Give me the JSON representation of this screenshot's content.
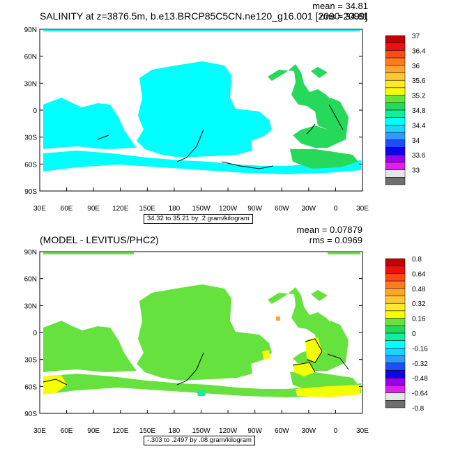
{
  "chart_data": [
    {
      "type": "heatmap",
      "title": "SALINITY at z=3876.5m, b.e13.BRCP85C5CN.ne120_g16.001 [2090-2099]",
      "stats": {
        "mean": "mean = 34.81",
        "rms": "rms = 34.81"
      },
      "info": "34.32 to 35.21 by .2 gram/kilogram",
      "x_ticks": [
        "30E",
        "60E",
        "90E",
        "120E",
        "150E",
        "180",
        "150W",
        "120W",
        "90W",
        "60W",
        "30W",
        "0",
        "30E"
      ],
      "y_ticks": [
        "90N",
        "60N",
        "30N",
        "0",
        "30S",
        "60S",
        "90S"
      ],
      "xlim": [
        30,
        390
      ],
      "ylim": [
        -90,
        90
      ],
      "colorbar_labels": [
        "37",
        "36.4",
        "36",
        "35.6",
        "35.2",
        "34.8",
        "34.4",
        "34",
        "33.6",
        "33"
      ],
      "colorbar_colors": [
        "#c40000",
        "#ee1010",
        "#ff4a14",
        "#ff7b1c",
        "#ffa430",
        "#ffc735",
        "#ffeb2b",
        "#f6ff00",
        "#66e23e",
        "#26d95a",
        "#12ee9f",
        "#00ffff",
        "#1ad3ff",
        "#2f9aff",
        "#1d4dff",
        "#1000ee",
        "#9900ee",
        "#dc20ee",
        "#e6e6e6",
        "#6e6e6e"
      ]
    },
    {
      "type": "heatmap",
      "title": "(MODEL - LEVITUS/PHC2)",
      "stats": {
        "mean": "mean = 0.07879",
        "rms": "rms = 0.0969"
      },
      "info": "-.303 to .2497 by .08 gram/kilogram",
      "x_ticks": [
        "30E",
        "60E",
        "90E",
        "120E",
        "150E",
        "180",
        "150W",
        "120W",
        "90W",
        "60W",
        "30W",
        "0",
        "30E"
      ],
      "y_ticks": [
        "90N",
        "60N",
        "30N",
        "0",
        "30S",
        "60S",
        "90S"
      ],
      "xlim": [
        30,
        390
      ],
      "ylim": [
        -90,
        90
      ],
      "colorbar_labels": [
        "0.8",
        "0.64",
        "0.48",
        "0.32",
        "0.16",
        "0",
        "-0.16",
        "-0.32",
        "-0.48",
        "-0.64",
        "-0.8"
      ],
      "colorbar_colors": [
        "#c40000",
        "#ee1010",
        "#ff4a14",
        "#ff7b1c",
        "#ffa430",
        "#ffc735",
        "#ffeb2b",
        "#f6ff00",
        "#66e23e",
        "#26d95a",
        "#12ee9f",
        "#00ffff",
        "#1ad3ff",
        "#2f9aff",
        "#1d4dff",
        "#1000ee",
        "#9900ee",
        "#dc20ee",
        "#e6e6e6",
        "#6e6e6e"
      ]
    }
  ]
}
